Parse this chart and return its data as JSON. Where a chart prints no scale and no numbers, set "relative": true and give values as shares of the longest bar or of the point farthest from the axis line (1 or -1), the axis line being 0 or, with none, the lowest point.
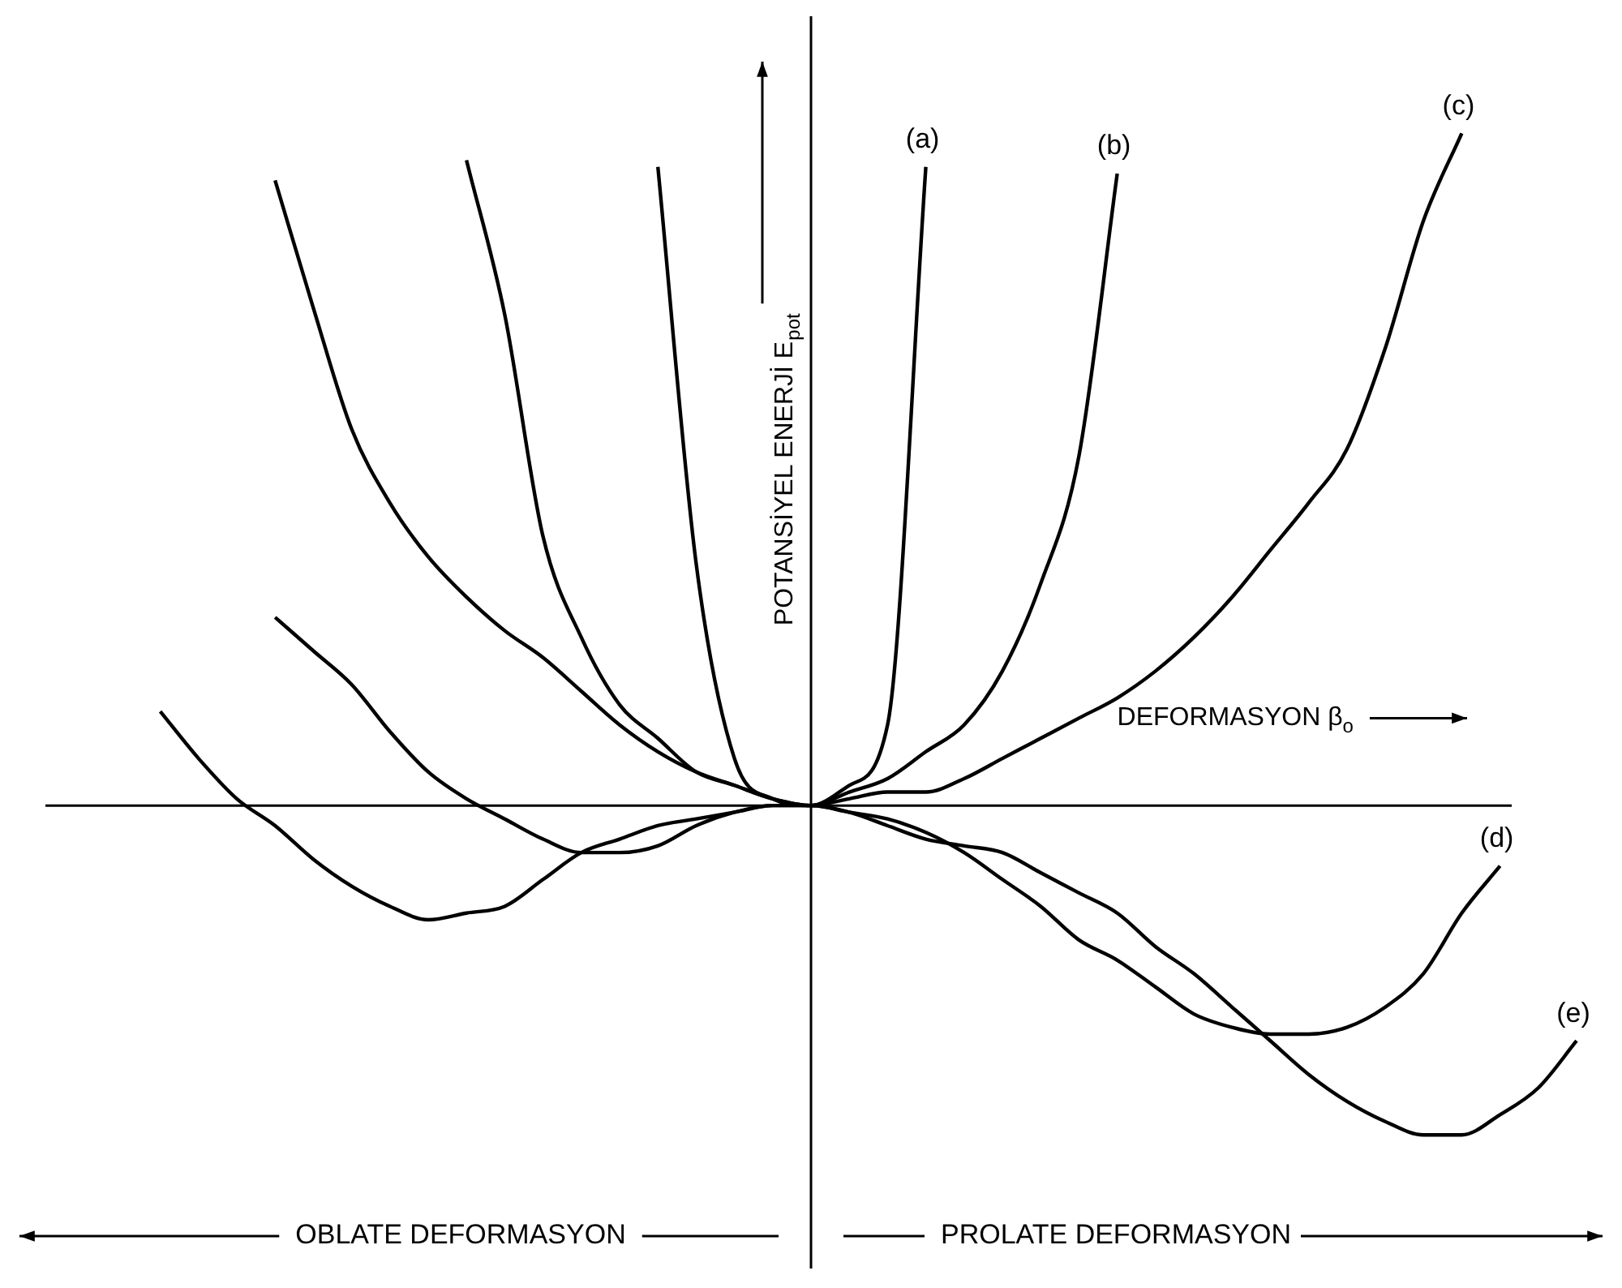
{
  "chart_data": {
    "type": "line",
    "relative": true,
    "marker": "none",
    "legend": false,
    "ylabel": "POTANSİYEL ENERJİ E$_{pot}$",
    "xlabel": "DEFORMASYON β$_{o}$",
    "annotations": [
      "OBLATE DEFORMASYON",
      "PROLATE DEFORMASYON"
    ],
    "categories": [
      null,
      null,
      null,
      null,
      null,
      null,
      null,
      null,
      null,
      null,
      null,
      null,
      null,
      null,
      null,
      null,
      null,
      null,
      null,
      null,
      null,
      null,
      null,
      null,
      null,
      null,
      null,
      null,
      null,
      null,
      null,
      null,
      null,
      null,
      null,
      null,
      null,
      null,
      null,
      null,
      null
    ],
    "series": [
      {
        "name": "(a)",
        "color": "#000000",
        "values": [
          null,
          null,
          null,
          null,
          null,
          null,
          null,
          null,
          null,
          null,
          null,
          null,
          null,
          null,
          null,
          null,
          0.95,
          0.36,
          0.07,
          0.01,
          0,
          0.03,
          0.12,
          0.95,
          null,
          null,
          null,
          null,
          null,
          null,
          null,
          null,
          null,
          null,
          null,
          null,
          null,
          null,
          null,
          null,
          null
        ]
      },
      {
        "name": "(b)",
        "color": "#000000",
        "values": [
          null,
          null,
          null,
          null,
          null,
          null,
          null,
          null,
          null,
          null,
          null,
          0.96,
          0.73,
          0.4,
          0.25,
          0.15,
          0.1,
          0.05,
          0.03,
          0.01,
          0,
          0.02,
          0.04,
          0.08,
          0.12,
          0.2,
          0.33,
          0.52,
          0.94,
          null,
          null,
          null,
          null,
          null,
          null,
          null,
          null,
          null,
          null,
          null,
          null
        ]
      },
      {
        "name": "(c)",
        "color": "#000000",
        "values": [
          null,
          null,
          null,
          null,
          null,
          null,
          0.93,
          0.74,
          0.56,
          0.45,
          0.37,
          0.31,
          0.26,
          0.22,
          0.17,
          0.12,
          0.08,
          0.05,
          0.03,
          0.01,
          0,
          0.01,
          0.02,
          0.02,
          0.04,
          0.07,
          0.1,
          0.13,
          0.16,
          0.2,
          0.25,
          0.31,
          0.38,
          0.45,
          0.53,
          0.68,
          0.87,
          1,
          null,
          null,
          null
        ]
      },
      {
        "name": "(d)",
        "color": "#000000",
        "values": [
          null,
          null,
          null,
          null,
          null,
          null,
          0.28,
          0.23,
          0.18,
          0.11,
          0.05,
          0.01,
          -0.02,
          -0.05,
          -0.07,
          -0.07,
          -0.06,
          -0.03,
          -0.01,
          0,
          0,
          -0.01,
          -0.02,
          -0.04,
          -0.07,
          -0.11,
          -0.15,
          -0.2,
          -0.23,
          -0.27,
          -0.31,
          -0.33,
          -0.34,
          -0.34,
          -0.33,
          -0.3,
          -0.25,
          -0.16,
          -0.09,
          null,
          null
        ]
      },
      {
        "name": "(e)",
        "color": "#000000",
        "values": [
          null,
          null,
          null,
          0.14,
          0.07,
          0.01,
          -0.03,
          -0.08,
          -0.12,
          -0.15,
          -0.17,
          -0.16,
          -0.15,
          -0.11,
          -0.07,
          -0.05,
          -0.03,
          -0.02,
          -0.01,
          0,
          0,
          -0.01,
          -0.03,
          -0.05,
          -0.06,
          -0.07,
          -0.1,
          -0.13,
          -0.16,
          -0.21,
          -0.25,
          -0.3,
          -0.35,
          -0.4,
          -0.44,
          -0.47,
          -0.49,
          -0.49,
          -0.46,
          -0.42,
          -0.35
        ]
      }
    ]
  }
}
